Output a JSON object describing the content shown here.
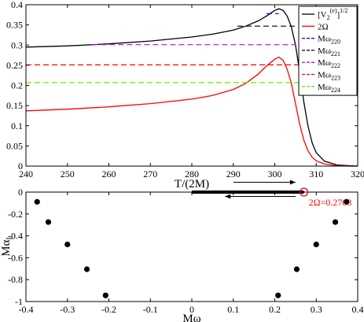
{
  "chart_data": [
    {
      "type": "line",
      "xlabel": "T/(2M)",
      "ylabel": "",
      "xlim": [
        240,
        320
      ],
      "ylim": [
        0,
        0.4
      ],
      "xticks": [
        "240",
        "250",
        "260",
        "270",
        "280",
        "290",
        "300",
        "310",
        "320"
      ],
      "yticks": [
        "0",
        "0.05",
        "0.1",
        "0.15",
        "0.2",
        "0.25",
        "0.3",
        "0.35",
        "0.4"
      ],
      "xtick_values": [
        240,
        250,
        260,
        270,
        280,
        290,
        300,
        310,
        320
      ],
      "ytick_values": [
        0,
        0.05,
        0.1,
        0.15,
        0.2,
        0.25,
        0.3,
        0.35,
        0.4
      ],
      "grid": false,
      "legend_position": "top-right",
      "series": [
        {
          "name": "[V2(e)]1/2",
          "legend_main": "[V",
          "legend_sub": "2",
          "legend_sup": "(e)",
          "legend_tail": "]",
          "legend_tail_sup": "1/2",
          "color": "#000000",
          "style": "solid",
          "x": [
            240,
            250,
            260,
            270,
            280,
            285,
            290,
            293,
            296,
            298,
            300,
            301,
            302,
            303,
            304,
            305,
            306,
            307,
            308,
            309,
            310,
            312,
            315,
            318,
            320
          ],
          "y": [
            0.295,
            0.298,
            0.303,
            0.31,
            0.32,
            0.327,
            0.337,
            0.347,
            0.36,
            0.372,
            0.386,
            0.39,
            0.386,
            0.372,
            0.345,
            0.3,
            0.235,
            0.16,
            0.1,
            0.058,
            0.033,
            0.012,
            0.003,
            0.001,
            0.0
          ]
        },
        {
          "name": "2Ω",
          "legend_main": "2Ω",
          "color": "#ff0000",
          "style": "solid",
          "x": [
            240,
            250,
            260,
            270,
            280,
            285,
            290,
            293,
            296,
            298,
            300,
            301,
            302,
            303,
            304,
            305,
            306,
            307,
            308,
            309,
            310,
            312,
            315,
            318,
            320
          ],
          "y": [
            0.137,
            0.141,
            0.147,
            0.155,
            0.166,
            0.175,
            0.19,
            0.205,
            0.228,
            0.248,
            0.265,
            0.27,
            0.262,
            0.24,
            0.205,
            0.155,
            0.105,
            0.065,
            0.038,
            0.022,
            0.013,
            0.005,
            0.001,
            0.0,
            0.0
          ]
        },
        {
          "name": "Mω220",
          "legend_main": "Mω",
          "legend_sub": "220",
          "color": "#0000ff",
          "style": "dashed",
          "x": [
            298,
            301
          ],
          "y": [
            0.378,
            0.378
          ]
        },
        {
          "name": "Mω221",
          "legend_main": "Mω",
          "legend_sub": "221",
          "color": "#000000",
          "style": "dashed",
          "x": [
            291,
            305
          ],
          "y": [
            0.347,
            0.347
          ]
        },
        {
          "name": "Mω222",
          "legend_main": "Mω",
          "legend_sub": "222",
          "color": "#cc00ff",
          "style": "dashed",
          "x": [
            256,
            305
          ],
          "y": [
            0.301,
            0.301
          ]
        },
        {
          "name": "Mω223",
          "legend_main": "Mω",
          "legend_sub": "223",
          "color": "#ff0000",
          "style": "dashed",
          "x": [
            240,
            306
          ],
          "y": [
            0.251,
            0.251
          ]
        },
        {
          "name": "Mω224",
          "legend_main": "Mω",
          "legend_sub": "224",
          "color": "#66ee00",
          "style": "dashed",
          "x": [
            240,
            307
          ],
          "y": [
            0.207,
            0.207
          ]
        }
      ]
    },
    {
      "type": "scatter",
      "xlabel": "Mω",
      "ylabel": "Mαi",
      "ylabel_main": "Mα",
      "ylabel_sub": "I",
      "xlim": [
        -0.4,
        0.4
      ],
      "ylim": [
        -1,
        0
      ],
      "xticks": [
        "-0.4",
        "-0.3",
        "-0.2",
        "-0.1",
        "0",
        "0.1",
        "0.2",
        "0.3",
        "0.4"
      ],
      "yticks": [
        "0",
        "-0.2",
        "-0.4",
        "-0.6",
        "-0.8",
        "-1"
      ],
      "xtick_values": [
        -0.4,
        -0.3,
        -0.2,
        -0.1,
        0,
        0.1,
        0.2,
        0.3,
        0.4
      ],
      "ytick_values": [
        0,
        -0.2,
        -0.4,
        -0.6,
        -0.8,
        -1
      ],
      "grid": false,
      "series": [
        {
          "color": "#000000",
          "points": [
            [
              -0.373,
              -0.089
            ],
            [
              -0.346,
              -0.274
            ],
            [
              -0.3,
              -0.478
            ],
            [
              -0.253,
              -0.705
            ],
            [
              -0.208,
              -0.944
            ],
            [
              0.373,
              -0.089
            ],
            [
              0.346,
              -0.274
            ],
            [
              0.3,
              -0.478
            ],
            [
              0.253,
              -0.705
            ],
            [
              0.208,
              -0.944
            ]
          ]
        }
      ],
      "interval": {
        "x": [
          0,
          0.2703
        ],
        "y": 0,
        "color": "#000000"
      },
      "marker": {
        "x": 0.2703,
        "y": 0,
        "color": "#ff0000"
      },
      "annotation": {
        "text": "2Ω=0.2703",
        "color": "#ff0000"
      },
      "arrows": [
        {
          "direction": "right",
          "x": [
            0.1,
            0.25
          ],
          "y": 0.09
        },
        {
          "direction": "left",
          "x": [
            0.08,
            0.25
          ],
          "y": -0.04
        }
      ]
    }
  ]
}
